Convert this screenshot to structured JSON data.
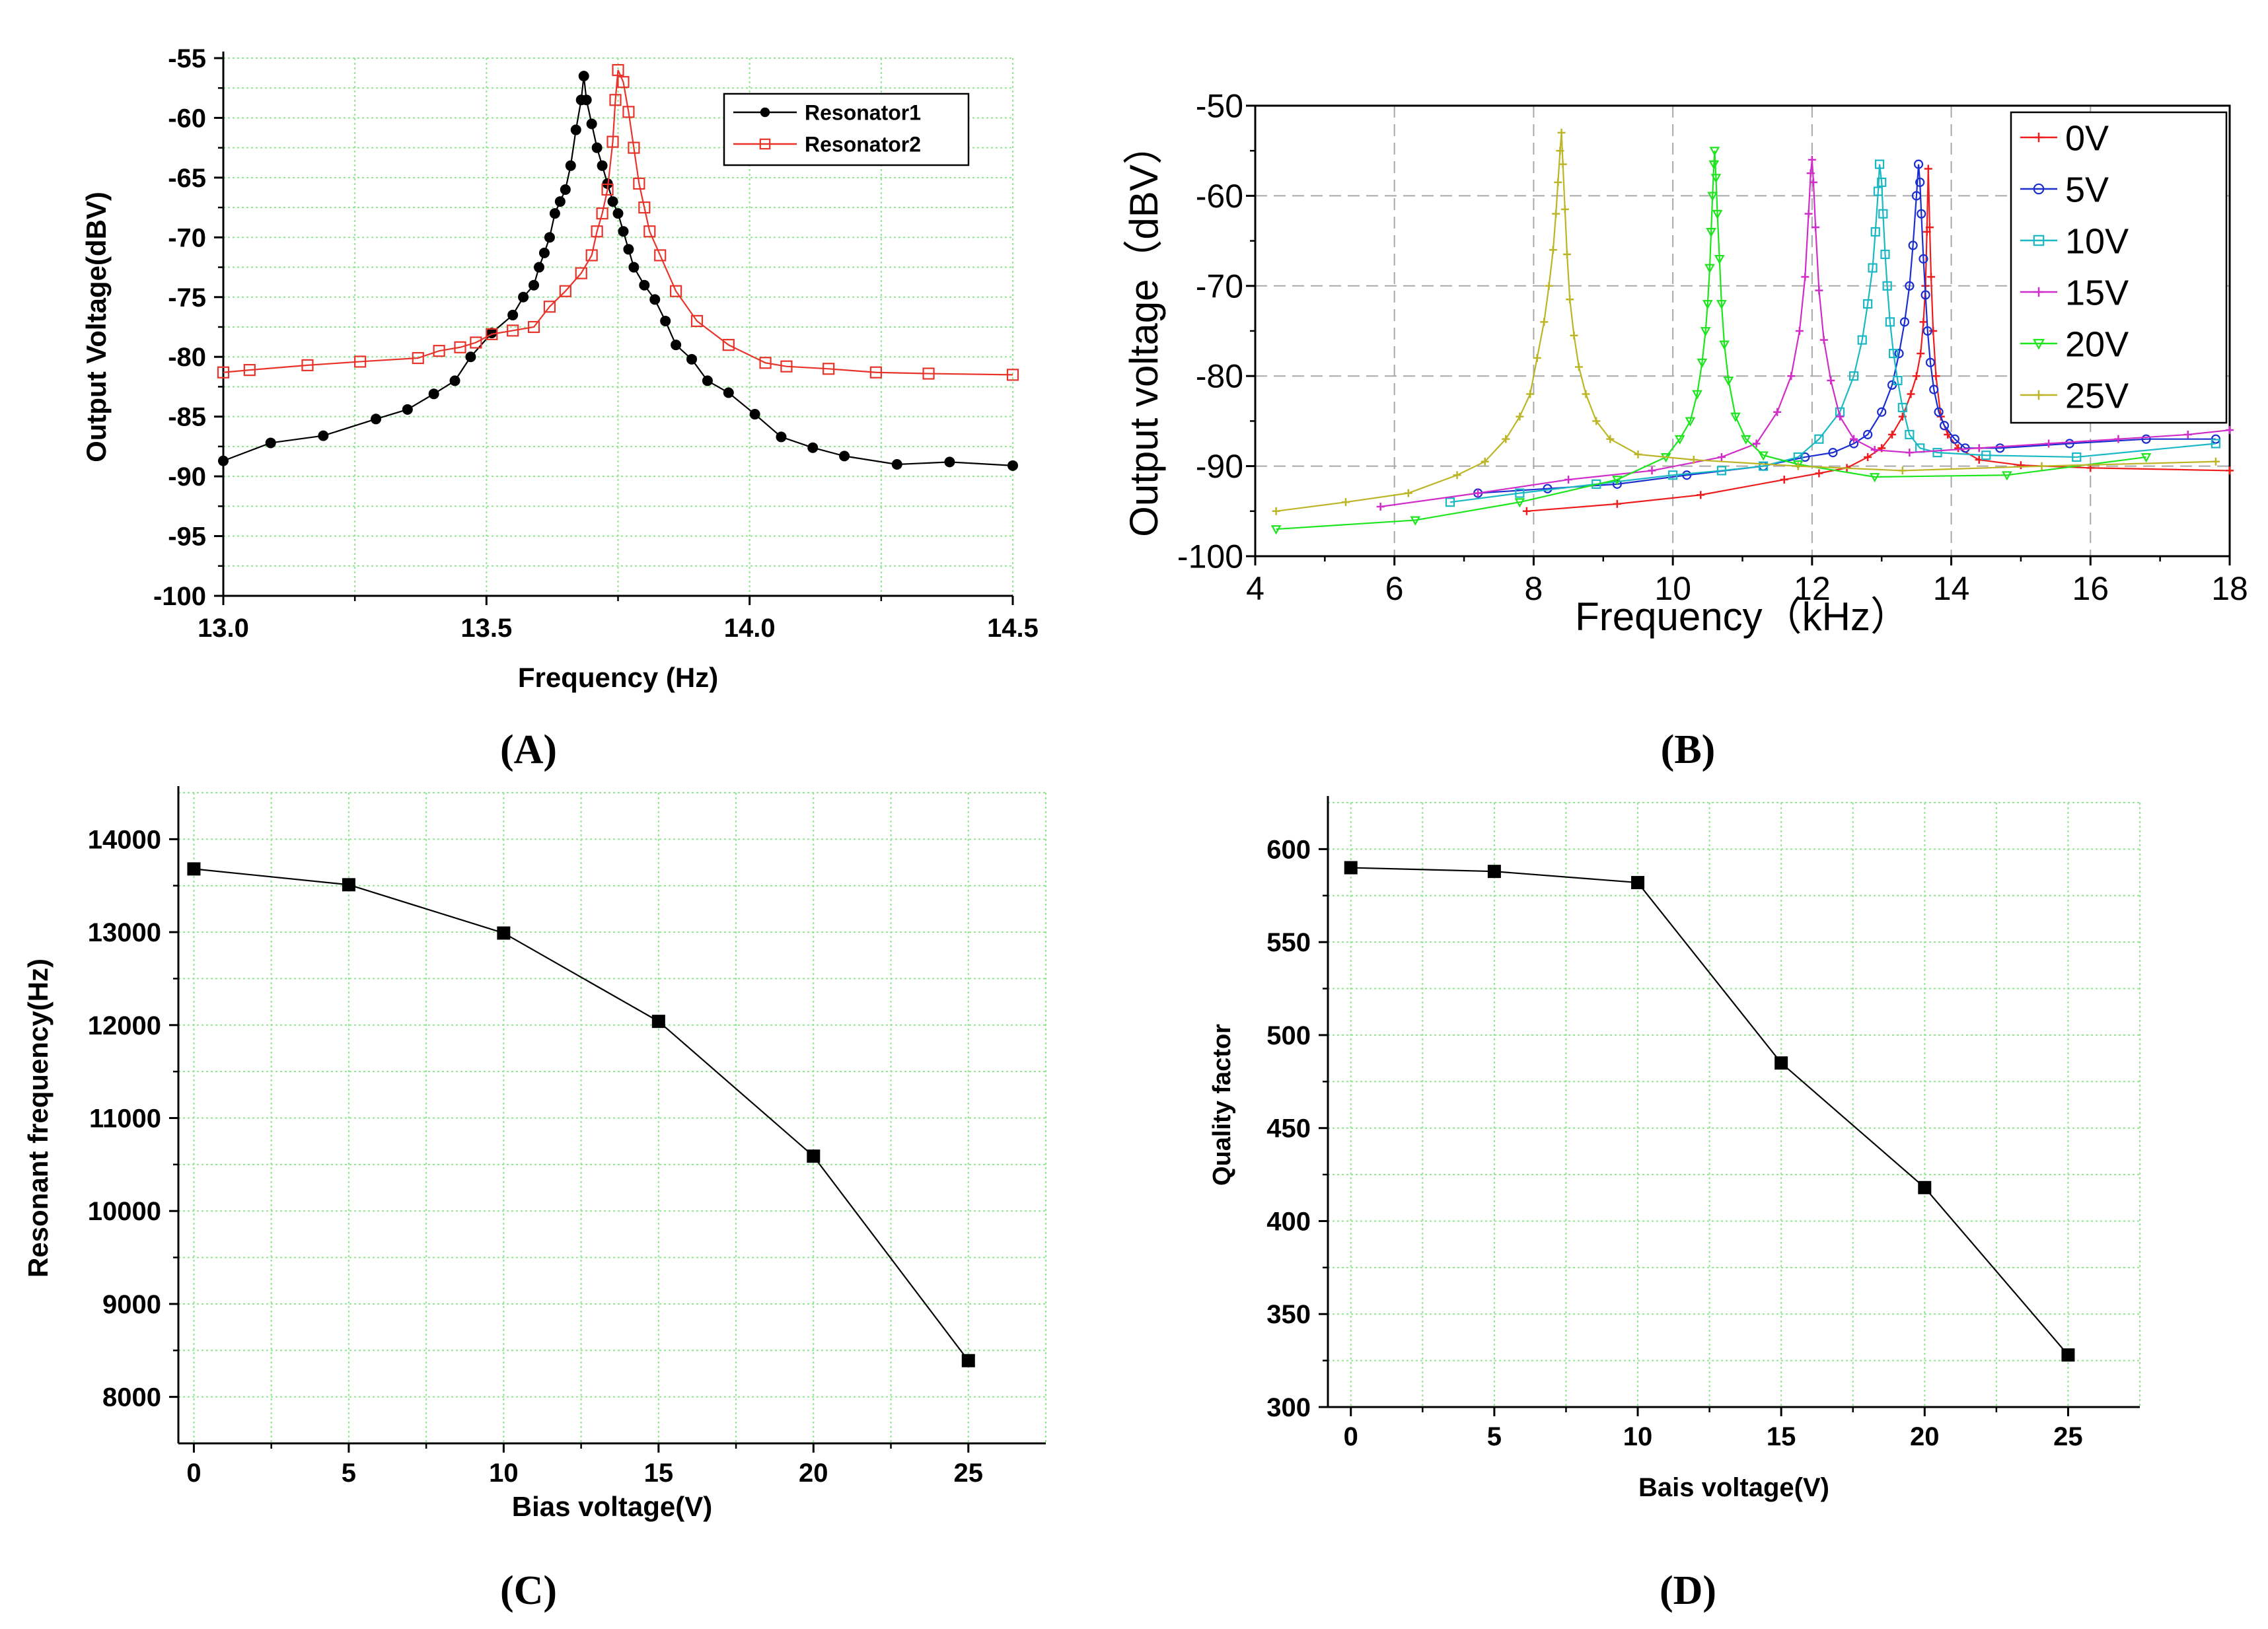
{
  "chart_data": [
    {
      "id": "A",
      "panel_label": "(A)",
      "type": "line",
      "title": "",
      "xlabel": "Frequency (Hz)",
      "ylabel": "Output Voltage(dBV)",
      "xlim": [
        13.0,
        14.5
      ],
      "ylim": [
        -100,
        -55
      ],
      "xticks": [
        13.0,
        13.5,
        14.0,
        14.5
      ],
      "xtick_labels": [
        "13.0",
        "13.5",
        "14.0",
        "14.5"
      ],
      "yticks": [
        -55,
        -60,
        -65,
        -70,
        -75,
        -80,
        -85,
        -90,
        -95,
        -100
      ],
      "ytick_labels": [
        "-55",
        "-60",
        "-65",
        "-70",
        "-75",
        "-80",
        "-85",
        "-90",
        "-95",
        "-100"
      ],
      "grid": true,
      "legend_position": "top-right",
      "series": [
        {
          "name": "Resonator1",
          "color": "#000000",
          "marker": "filled-circle",
          "x": [
            13.0,
            13.09,
            13.19,
            13.29,
            13.35,
            13.4,
            13.44,
            13.47,
            13.51,
            13.55,
            13.57,
            13.59,
            13.6,
            13.61,
            13.62,
            13.63,
            13.64,
            13.65,
            13.66,
            13.67,
            13.68,
            13.685,
            13.69,
            13.7,
            13.71,
            13.72,
            13.73,
            13.74,
            13.75,
            13.76,
            13.77,
            13.78,
            13.8,
            13.82,
            13.84,
            13.86,
            13.89,
            13.92,
            13.96,
            14.01,
            14.06,
            14.12,
            14.18,
            14.28,
            14.38,
            14.5
          ],
          "values": [
            -88.7,
            -87.2,
            -86.6,
            -85.2,
            -84.4,
            -83.1,
            -82.0,
            -80.0,
            -78.0,
            -76.5,
            -75.0,
            -74.0,
            -72.5,
            -71.3,
            -70.0,
            -68.0,
            -67.0,
            -66.0,
            -64.0,
            -61.0,
            -58.5,
            -56.5,
            -58.5,
            -60.5,
            -62.5,
            -64.0,
            -65.5,
            -67.0,
            -68.0,
            -69.5,
            -71.0,
            -72.5,
            -74.0,
            -75.2,
            -77.0,
            -79.0,
            -80.2,
            -82.0,
            -83.0,
            -84.8,
            -86.7,
            -87.6,
            -88.3,
            -89.0,
            -88.8,
            -89.1
          ]
        },
        {
          "name": "Resonator2",
          "color": "#e8332a",
          "marker": "open-square",
          "x": [
            13.0,
            13.05,
            13.16,
            13.26,
            13.37,
            13.41,
            13.45,
            13.48,
            13.51,
            13.55,
            13.59,
            13.62,
            13.65,
            13.68,
            13.7,
            13.71,
            13.72,
            13.73,
            13.74,
            13.745,
            13.75,
            13.76,
            13.77,
            13.78,
            13.79,
            13.8,
            13.81,
            13.83,
            13.86,
            13.9,
            13.96,
            14.03,
            14.07,
            14.15,
            14.24,
            14.34,
            14.5
          ],
          "values": [
            -81.3,
            -81.1,
            -80.7,
            -80.4,
            -80.1,
            -79.5,
            -79.2,
            -78.8,
            -78.1,
            -77.8,
            -77.5,
            -75.8,
            -74.5,
            -73.0,
            -71.5,
            -69.5,
            -68.0,
            -66.0,
            -62.0,
            -58.5,
            -56.0,
            -57.0,
            -59.5,
            -62.5,
            -65.5,
            -67.5,
            -69.5,
            -71.5,
            -74.5,
            -77.0,
            -79.0,
            -80.5,
            -80.8,
            -81.0,
            -81.3,
            -81.4,
            -81.5
          ]
        }
      ]
    },
    {
      "id": "B",
      "panel_label": "(B)",
      "type": "line",
      "title": "",
      "xlabel": "Frequency（kHz）",
      "ylabel": "Output voltage（dBV）",
      "xlim": [
        4,
        18
      ],
      "ylim": [
        -100,
        -50
      ],
      "xticks": [
        4,
        6,
        8,
        10,
        12,
        14,
        16,
        18
      ],
      "xtick_labels": [
        "4",
        "6",
        "8",
        "10",
        "12",
        "14",
        "16",
        "18"
      ],
      "yticks": [
        -50,
        -60,
        -70,
        -80,
        -90,
        -100
      ],
      "ytick_labels": [
        "-50",
        "-60",
        "-70",
        "-80",
        "-90",
        "-100"
      ],
      "grid": true,
      "legend_position": "top-right",
      "series": [
        {
          "name": "0V",
          "color": "#ee1c1c",
          "marker": "plus",
          "x": [
            7.9,
            9.2,
            10.4,
            11.6,
            12.1,
            12.5,
            12.8,
            13.0,
            13.15,
            13.3,
            13.42,
            13.5,
            13.56,
            13.6,
            13.63,
            13.65,
            13.67,
            13.69,
            13.71,
            13.74,
            13.78,
            13.85,
            13.95,
            14.1,
            14.4,
            15.0,
            16.0,
            18.0
          ],
          "values": [
            -95.0,
            -94.2,
            -93.2,
            -91.5,
            -90.8,
            -90.2,
            -89.0,
            -88.0,
            -86.5,
            -84.5,
            -82.0,
            -80.0,
            -77.5,
            -74.0,
            -70.0,
            -64.0,
            -57.0,
            -63.5,
            -69.0,
            -75.0,
            -80.0,
            -84.5,
            -86.5,
            -88.0,
            -89.3,
            -89.9,
            -90.2,
            -90.5
          ]
        },
        {
          "name": "5V",
          "color": "#1b2ecf",
          "marker": "open-circle",
          "x": [
            7.2,
            8.2,
            9.2,
            10.2,
            11.3,
            11.9,
            12.3,
            12.6,
            12.8,
            13.0,
            13.15,
            13.25,
            13.33,
            13.4,
            13.45,
            13.5,
            13.53,
            13.55,
            13.57,
            13.6,
            13.63,
            13.66,
            13.7,
            13.75,
            13.82,
            13.9,
            14.05,
            14.2,
            14.7,
            15.7,
            16.8,
            17.8
          ],
          "values": [
            -93.0,
            -92.5,
            -92.0,
            -91.0,
            -90.0,
            -89.0,
            -88.5,
            -87.5,
            -86.5,
            -84.0,
            -81.0,
            -77.5,
            -74.0,
            -70.0,
            -65.5,
            -60.0,
            -56.5,
            -58.5,
            -62.0,
            -67.0,
            -71.0,
            -75.0,
            -78.5,
            -81.5,
            -84.0,
            -85.5,
            -87.0,
            -88.0,
            -88.0,
            -87.5,
            -87.0,
            -87.0
          ]
        },
        {
          "name": "10V",
          "color": "#19b8c4",
          "marker": "open-square",
          "x": [
            6.8,
            7.8,
            8.9,
            10.0,
            10.7,
            11.3,
            11.8,
            12.1,
            12.4,
            12.6,
            12.72,
            12.8,
            12.87,
            12.91,
            12.95,
            12.97,
            13.0,
            13.02,
            13.05,
            13.08,
            13.12,
            13.17,
            13.23,
            13.3,
            13.4,
            13.55,
            13.8,
            14.5,
            15.8,
            17.8
          ],
          "values": [
            -94.0,
            -93.0,
            -92.0,
            -91.0,
            -90.5,
            -90.0,
            -89.0,
            -87.0,
            -84.0,
            -80.0,
            -76.0,
            -72.0,
            -68.0,
            -64.0,
            -59.5,
            -56.5,
            -58.5,
            -62.0,
            -66.5,
            -70.0,
            -74.0,
            -77.5,
            -80.5,
            -83.5,
            -86.5,
            -88.0,
            -88.5,
            -88.8,
            -89.0,
            -87.5
          ]
        },
        {
          "name": "15V",
          "color": "#d02cc9",
          "marker": "plus",
          "x": [
            5.8,
            7.2,
            8.5,
            9.7,
            10.7,
            11.2,
            11.5,
            11.7,
            11.82,
            11.9,
            11.95,
            11.98,
            12.0,
            12.02,
            12.05,
            12.1,
            12.17,
            12.27,
            12.4,
            12.6,
            12.9,
            13.4,
            14.4,
            15.4,
            16.4,
            17.4,
            18.0
          ],
          "values": [
            -94.5,
            -93.0,
            -91.5,
            -90.5,
            -89.0,
            -87.5,
            -84.0,
            -80.0,
            -75.0,
            -69.0,
            -62.0,
            -57.5,
            -56.0,
            -58.5,
            -63.5,
            -70.5,
            -76.0,
            -80.5,
            -84.5,
            -87.0,
            -88.2,
            -88.5,
            -88.0,
            -87.5,
            -87.0,
            -86.5,
            -86.0
          ]
        },
        {
          "name": "20V",
          "color": "#1de51d",
          "marker": "open-triangle-down",
          "x": [
            4.3,
            6.3,
            7.8,
            9.2,
            9.9,
            10.1,
            10.25,
            10.35,
            10.42,
            10.47,
            10.5,
            10.53,
            10.55,
            10.57,
            10.59,
            10.6,
            10.62,
            10.64,
            10.67,
            10.7,
            10.74,
            10.8,
            10.9,
            11.05,
            11.3,
            11.8,
            12.9,
            14.8,
            16.8
          ],
          "values": [
            -97.0,
            -96.0,
            -94.0,
            -91.5,
            -89.0,
            -87.0,
            -85.0,
            -82.0,
            -78.5,
            -75.0,
            -72.0,
            -68.0,
            -64.0,
            -60.0,
            -56.5,
            -55.0,
            -58.0,
            -62.0,
            -67.0,
            -72.0,
            -76.5,
            -80.5,
            -84.5,
            -87.0,
            -88.8,
            -89.8,
            -91.2,
            -91.0,
            -89.0
          ]
        },
        {
          "name": "25V",
          "color": "#bcb526",
          "marker": "plus",
          "x": [
            4.3,
            5.3,
            6.2,
            6.9,
            7.3,
            7.6,
            7.8,
            7.95,
            8.05,
            8.15,
            8.22,
            8.28,
            8.32,
            8.35,
            8.38,
            8.4,
            8.42,
            8.45,
            8.48,
            8.52,
            8.58,
            8.65,
            8.75,
            8.9,
            9.1,
            9.5,
            10.3,
            11.8,
            13.3,
            15.3,
            17.8
          ],
          "values": [
            -95.0,
            -94.0,
            -93.0,
            -91.0,
            -89.5,
            -87.0,
            -84.5,
            -82.0,
            -78.0,
            -74.0,
            -70.0,
            -66.0,
            -62.0,
            -58.5,
            -55.0,
            -53.0,
            -56.5,
            -61.5,
            -66.5,
            -71.5,
            -75.5,
            -79.0,
            -82.0,
            -85.0,
            -87.0,
            -88.7,
            -89.3,
            -90.0,
            -90.5,
            -90.0,
            -89.5
          ]
        }
      ]
    },
    {
      "id": "C",
      "panel_label": "(C)",
      "type": "line",
      "title": "",
      "xlabel": "Bias voltage(V)",
      "ylabel": "Resonant frequency(Hz)",
      "xlim": [
        -0.5,
        27.5
      ],
      "ylim": [
        7500,
        14500
      ],
      "xticks": [
        0,
        5,
        10,
        15,
        20,
        25
      ],
      "xtick_labels": [
        "0",
        "5",
        "10",
        "15",
        "20",
        "25"
      ],
      "yticks": [
        8000,
        9000,
        10000,
        11000,
        12000,
        13000,
        14000
      ],
      "ytick_labels": [
        "8000",
        "9000",
        "10000",
        "11000",
        "12000",
        "13000",
        "14000"
      ],
      "grid": true,
      "series": [
        {
          "name": "Resonant frequency",
          "color": "#000000",
          "marker": "filled-square",
          "x": [
            0,
            5,
            10,
            15,
            20,
            25
          ],
          "values": [
            13680,
            13510,
            12990,
            12040,
            10590,
            8390
          ]
        }
      ]
    },
    {
      "id": "D",
      "panel_label": "(D)",
      "type": "line",
      "title": "",
      "xlabel": "Bais voltage(V)",
      "ylabel": "Quality factor",
      "xlim": [
        -0.8,
        27.5
      ],
      "ylim": [
        300,
        625
      ],
      "xticks": [
        0,
        5,
        10,
        15,
        20,
        25
      ],
      "xtick_labels": [
        "0",
        "5",
        "10",
        "15",
        "20",
        "25"
      ],
      "yticks": [
        300,
        350,
        400,
        450,
        500,
        550,
        600
      ],
      "ytick_labels": [
        "300",
        "350",
        "400",
        "450",
        "500",
        "550",
        "600"
      ],
      "grid": true,
      "series": [
        {
          "name": "Quality factor",
          "color": "#000000",
          "marker": "filled-square",
          "x": [
            0,
            5,
            10,
            15,
            20,
            25
          ],
          "values": [
            590,
            588,
            582,
            485,
            418,
            328
          ]
        }
      ]
    }
  ]
}
